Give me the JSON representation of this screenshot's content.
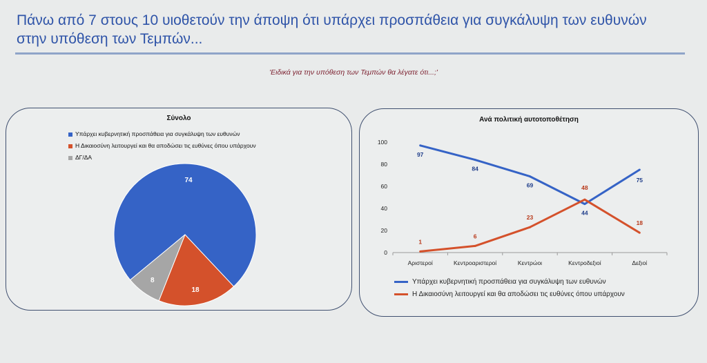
{
  "header": {
    "title_line1": "Πάνω από 7 στους 10 υιοθετούν την άποψη ότι υπάρχει προσπάθεια για συγκάλυψη των ευθυνών",
    "title_line2": "στην υπόθεση των Τεμπών...",
    "question": "'Ειδικά για την υπόθεση  των Τεμπών θα λέγατε ότι...;'"
  },
  "colors": {
    "blue": "#3563c6",
    "orange": "#d4512b",
    "gray": "#a6a6a6"
  },
  "chart_data": [
    {
      "type": "pie",
      "title": "Σύνολο",
      "legend_position": "top-left",
      "slices": [
        {
          "label": "Υπάρχει κυβερνητική προσπάθεια για συγκάλυψη των ευθυνών",
          "value": 74
        },
        {
          "label": "Η Δικαιοσύνη λειτουργεί και θα αποδώσει τις ευθύνες όπου υπάρχουν",
          "value": 18
        },
        {
          "label": "ΔΓ/ΔΑ",
          "value": 8
        }
      ]
    },
    {
      "type": "line",
      "title": "Ανά πολιτική αυτοτοποθέτηση",
      "categories": [
        "Αριστεροί",
        "Κεντροαριστεροί",
        "Κεντρώοι",
        "Κεντροδεξιοί",
        "Δεξιοί"
      ],
      "ylim": [
        0,
        100
      ],
      "yticks": [
        0,
        20,
        40,
        60,
        80,
        100
      ],
      "grid": false,
      "legend_position": "bottom",
      "series": [
        {
          "name": "Υπάρχει κυβερνητική προσπάθεια για συγκάλυψη των ευθυνών",
          "values": [
            97,
            84,
            69,
            44,
            75
          ]
        },
        {
          "name": "Η Δικαιοσύνη λειτουργεί και θα αποδώσει τις ευθύνες όπου υπάρχουν",
          "values": [
            1,
            6,
            23,
            48,
            18
          ]
        }
      ]
    }
  ]
}
